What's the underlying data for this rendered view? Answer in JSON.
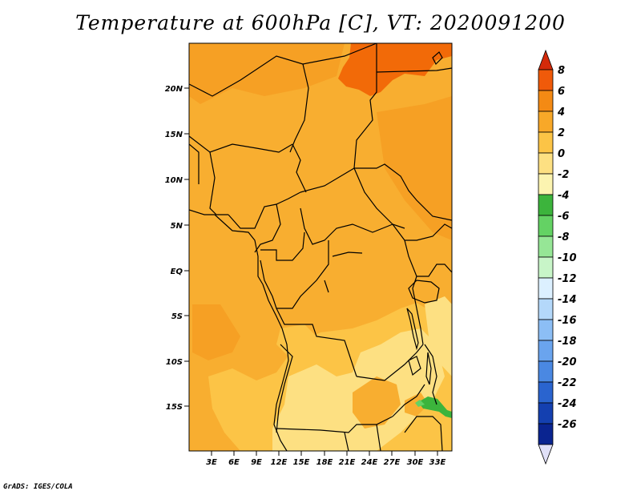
{
  "title": "Temperature at 600hPa [C], VT: 2020091200",
  "footer": "GrADS: IGES/COLA",
  "map": {
    "lat_labels": [
      "20N",
      "15N",
      "10N",
      "5N",
      "EQ",
      "5S",
      "10S",
      "15S"
    ],
    "lon_labels": [
      "3E",
      "6E",
      "9E",
      "12E",
      "15E",
      "18E",
      "21E",
      "24E",
      "27E",
      "30E",
      "33E"
    ]
  },
  "colorbar": {
    "labels": [
      "8",
      "6",
      "4",
      "2",
      "0",
      "-2",
      "-4",
      "-6",
      "-8",
      "-10",
      "-12",
      "-14",
      "-16",
      "-18",
      "-20",
      "-22",
      "-24",
      "-26"
    ],
    "colors": [
      "#d42a0a",
      "#f05a0a",
      "#f48a14",
      "#f8a828",
      "#fcc446",
      "#fde082",
      "#fcf4b0",
      "#3cb43c",
      "#64d264",
      "#96e696",
      "#c8f5c8",
      "#dcf0ff",
      "#b4d8fa",
      "#8cbef5",
      "#6aa4ee",
      "#4a88e2",
      "#2a64cf",
      "#1440b0",
      "#0a2490",
      "#081060"
    ]
  },
  "colors": {
    "base": "#f8ae30",
    "warm_patch": "#f6a024",
    "hot": "#f26a08",
    "cool": "#fcc446",
    "cooler": "#fde082",
    "green": "#3cb43c"
  }
}
